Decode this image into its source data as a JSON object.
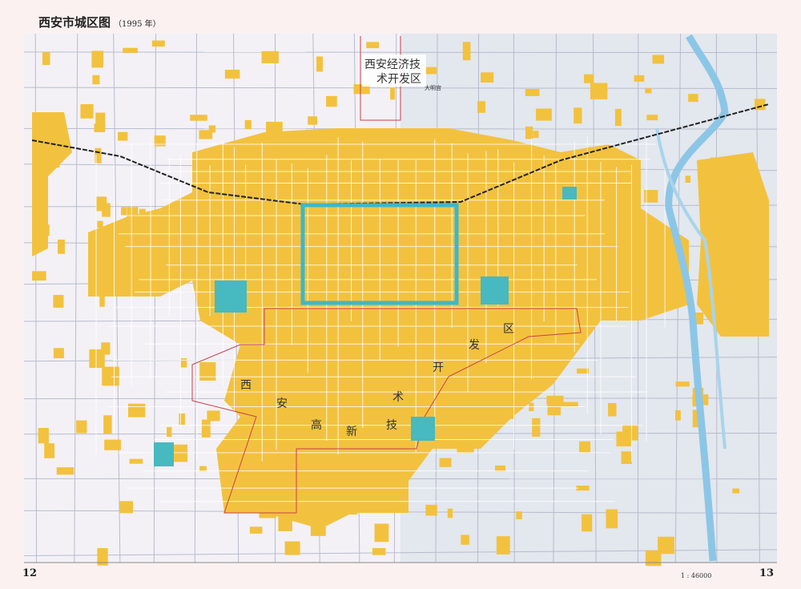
{
  "title": "西安市城区图",
  "year": "（1995 年）",
  "page_left": "12",
  "page_right": "13",
  "scale": "1 : 46000",
  "zones": {
    "economic": "西安经济技术开发区",
    "economic_line1": "西安经济技",
    "economic_line2": "术开发区",
    "hightech_chars": [
      "西",
      "安",
      "高",
      "新",
      "技",
      "术",
      "开",
      "发",
      "区"
    ]
  },
  "places": [
    "大明宫"
  ],
  "colors": {
    "urban": "#f2c23e",
    "wall": "#3cb8c8",
    "river": "#8cc6e6",
    "boundary": "#c8404a",
    "left_bg": "#f3f1f6",
    "right_bg": "#e3e7ee"
  }
}
